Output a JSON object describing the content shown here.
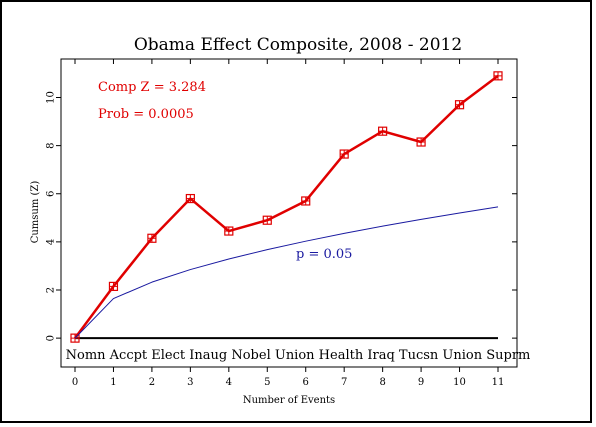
{
  "chart_data": {
    "type": "line",
    "title": "Obama Effect Composite, 2008 - 2012",
    "xlabel": "Number of Events",
    "ylabel": "Cumsum (Z)",
    "xlim": [
      0,
      11
    ],
    "ylim": [
      -1.2,
      11.6
    ],
    "x_ticks": [
      "0",
      "1",
      "2",
      "3",
      "4",
      "5",
      "6",
      "7",
      "8",
      "9",
      "10",
      "11"
    ],
    "y_ticks": [
      "0",
      "2",
      "4",
      "6",
      "8",
      "10"
    ],
    "series": [
      {
        "name": "",
        "color": "#e00000",
        "marker": "square-cross",
        "x": [
          0,
          1,
          2,
          3,
          4,
          5,
          6,
          7,
          8,
          9,
          10,
          11
        ],
        "values": [
          0,
          2.15,
          4.15,
          5.8,
          4.45,
          4.9,
          5.7,
          7.65,
          8.6,
          8.15,
          9.7,
          10.9
        ]
      },
      {
        "name": "",
        "color": "#1a1aa0",
        "marker": "none",
        "x": [
          0,
          1,
          2,
          3,
          4,
          5,
          6,
          7,
          8,
          9,
          10,
          11
        ],
        "values": [
          0,
          1.645,
          2.326,
          2.849,
          3.29,
          3.678,
          4.029,
          4.352,
          4.653,
          4.935,
          5.202,
          5.456
        ]
      }
    ],
    "baseline": {
      "y": 0,
      "color": "#000000"
    },
    "event_labels": {
      "text": [
        "Nomn",
        "Accpt",
        "Elect",
        "Inaug",
        "Nobel",
        "Union",
        "Health",
        "Iraq",
        "Tucsn",
        "Union",
        "Suprm"
      ]
    },
    "annotations": {
      "comp_z": "Comp Z = 3.284",
      "prob": "Prob = 0.0005",
      "p_label": "p = 0.05"
    },
    "grid": false
  }
}
